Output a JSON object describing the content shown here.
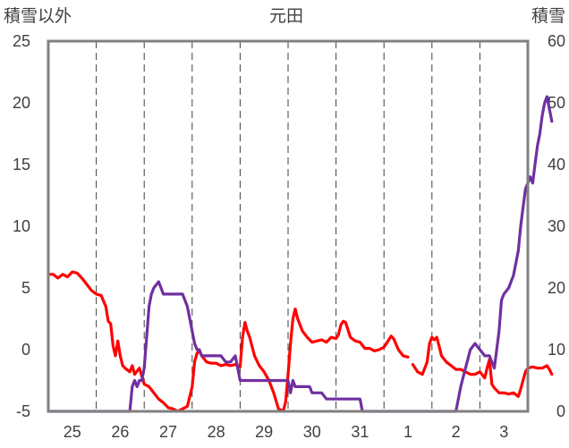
{
  "chart_data": {
    "type": "line",
    "title": "元田",
    "left_axis_label": "積雪以外",
    "right_axis_label": "積雪",
    "x_tick_labels": [
      "25",
      "26",
      "27",
      "28",
      "29",
      "30",
      "31",
      "1",
      "2",
      "3"
    ],
    "x_range_days": [
      0,
      10
    ],
    "y_left": {
      "min": -5,
      "max": 25,
      "ticks": [
        "-5",
        "0",
        "5",
        "10",
        "15",
        "20",
        "25"
      ]
    },
    "y_right": {
      "min": 0,
      "max": 60,
      "ticks": [
        "0",
        "10",
        "20",
        "30",
        "40",
        "50",
        "60"
      ]
    },
    "grid": {
      "vertical": "dashed",
      "horizontal": "none"
    },
    "series": [
      {
        "axis": "left",
        "color": "#ff0000",
        "points": [
          [
            0.0,
            6.1
          ],
          [
            0.1,
            6.1
          ],
          [
            0.2,
            5.8
          ],
          [
            0.3,
            6.1
          ],
          [
            0.4,
            5.9
          ],
          [
            0.5,
            6.3
          ],
          [
            0.6,
            6.2
          ],
          [
            0.7,
            5.8
          ],
          [
            0.8,
            5.3
          ],
          [
            0.9,
            4.8
          ],
          [
            1.0,
            4.5
          ],
          [
            1.1,
            4.4
          ],
          [
            1.2,
            3.5
          ],
          [
            1.25,
            2.3
          ],
          [
            1.3,
            2.1
          ],
          [
            1.35,
            0.3
          ],
          [
            1.4,
            -0.5
          ],
          [
            1.45,
            0.7
          ],
          [
            1.5,
            -0.5
          ],
          [
            1.55,
            -1.3
          ],
          [
            1.6,
            -1.5
          ],
          [
            1.7,
            -1.8
          ],
          [
            1.75,
            -1.3
          ],
          [
            1.8,
            -2.0
          ],
          [
            1.9,
            -1.5
          ],
          [
            2.0,
            -2.8
          ],
          [
            2.1,
            -3.0
          ],
          [
            2.2,
            -3.5
          ],
          [
            2.3,
            -4.0
          ],
          [
            2.4,
            -4.3
          ],
          [
            2.5,
            -4.7
          ],
          [
            2.6,
            -4.8
          ],
          [
            2.7,
            -5.0
          ],
          [
            2.8,
            -4.8
          ],
          [
            2.9,
            -4.6
          ],
          [
            3.0,
            -3.0
          ],
          [
            3.05,
            -1.0
          ],
          [
            3.1,
            -0.3
          ],
          [
            3.15,
            -0.1
          ],
          [
            3.2,
            -0.5
          ],
          [
            3.3,
            -1.0
          ],
          [
            3.4,
            -1.1
          ],
          [
            3.5,
            -1.1
          ],
          [
            3.6,
            -1.3
          ],
          [
            3.7,
            -1.2
          ],
          [
            3.8,
            -1.3
          ],
          [
            3.9,
            -1.2
          ],
          [
            4.0,
            -1.4
          ],
          [
            4.05,
            1.0
          ],
          [
            4.1,
            2.2
          ],
          [
            4.15,
            1.5
          ],
          [
            4.2,
            1.0
          ],
          [
            4.3,
            -0.5
          ],
          [
            4.4,
            -1.3
          ],
          [
            4.5,
            -1.8
          ],
          [
            4.6,
            -2.5
          ],
          [
            4.7,
            -3.5
          ],
          [
            4.8,
            -4.8
          ],
          [
            4.9,
            -5.0
          ],
          [
            4.95,
            -4.2
          ],
          [
            5.0,
            -2.0
          ],
          [
            5.05,
            0.5
          ],
          [
            5.1,
            2.5
          ],
          [
            5.15,
            3.3
          ],
          [
            5.2,
            2.5
          ],
          [
            5.3,
            1.5
          ],
          [
            5.4,
            1.0
          ],
          [
            5.5,
            0.6
          ],
          [
            5.6,
            0.7
          ],
          [
            5.7,
            0.8
          ],
          [
            5.8,
            0.6
          ],
          [
            5.9,
            1.0
          ],
          [
            6.0,
            0.9
          ],
          [
            6.05,
            1.2
          ],
          [
            6.1,
            2.0
          ],
          [
            6.15,
            2.3
          ],
          [
            6.2,
            2.2
          ],
          [
            6.3,
            1.0
          ],
          [
            6.4,
            0.7
          ],
          [
            6.5,
            0.6
          ],
          [
            6.6,
            0.1
          ],
          [
            6.7,
            0.1
          ],
          [
            6.8,
            -0.1
          ],
          [
            6.9,
            0.0
          ],
          [
            7.0,
            0.2
          ],
          [
            7.1,
            0.8
          ],
          [
            7.15,
            1.1
          ],
          [
            7.2,
            0.9
          ],
          [
            7.3,
            0.0
          ],
          [
            7.4,
            -0.5
          ],
          [
            7.5,
            -0.6
          ],
          [
            7.55,
            null
          ],
          [
            7.6,
            -1.2
          ],
          [
            7.7,
            -1.8
          ],
          [
            7.8,
            -2.0
          ],
          [
            7.85,
            -1.5
          ],
          [
            7.9,
            -1.0
          ],
          [
            7.95,
            0.5
          ],
          [
            8.0,
            1.0
          ],
          [
            8.05,
            0.8
          ],
          [
            8.1,
            1.0
          ],
          [
            8.15,
            0.3
          ],
          [
            8.2,
            -0.5
          ],
          [
            8.3,
            -1.0
          ],
          [
            8.4,
            -1.3
          ],
          [
            8.5,
            -1.6
          ],
          [
            8.6,
            -1.6
          ],
          [
            8.7,
            -1.8
          ],
          [
            8.8,
            -2.0
          ],
          [
            8.9,
            -2.0
          ],
          [
            9.0,
            -1.8
          ],
          [
            9.1,
            -2.3
          ],
          [
            9.15,
            -1.5
          ],
          [
            9.2,
            -0.8
          ],
          [
            9.25,
            -2.8
          ],
          [
            9.3,
            -3.1
          ],
          [
            9.4,
            -3.5
          ],
          [
            9.5,
            -3.5
          ],
          [
            9.6,
            -3.6
          ],
          [
            9.7,
            -3.5
          ],
          [
            9.8,
            -3.8
          ],
          [
            9.85,
            -3.2
          ],
          [
            9.9,
            -2.5
          ],
          [
            9.95,
            -1.8
          ],
          [
            10.0,
            -1.5
          ],
          [
            10.1,
            -1.4
          ],
          [
            10.2,
            -1.5
          ],
          [
            10.3,
            -1.5
          ],
          [
            10.4,
            -1.3
          ],
          [
            10.45,
            -1.6
          ],
          [
            10.5,
            -2.0
          ]
        ]
      },
      {
        "axis": "right",
        "color": "#7030a0",
        "points": [
          [
            0.0,
            0
          ],
          [
            1.7,
            0
          ],
          [
            1.75,
            4
          ],
          [
            1.8,
            5
          ],
          [
            1.85,
            4
          ],
          [
            1.9,
            5
          ],
          [
            1.95,
            5
          ],
          [
            2.0,
            7
          ],
          [
            2.05,
            12
          ],
          [
            2.1,
            17
          ],
          [
            2.15,
            19
          ],
          [
            2.2,
            20
          ],
          [
            2.3,
            21
          ],
          [
            2.35,
            20
          ],
          [
            2.4,
            19
          ],
          [
            2.5,
            19
          ],
          [
            2.6,
            19
          ],
          [
            2.7,
            19
          ],
          [
            2.8,
            19
          ],
          [
            2.9,
            17
          ],
          [
            3.0,
            13
          ],
          [
            3.05,
            11
          ],
          [
            3.1,
            10
          ],
          [
            3.15,
            10
          ],
          [
            3.2,
            9
          ],
          [
            3.3,
            9
          ],
          [
            3.5,
            9
          ],
          [
            3.6,
            9
          ],
          [
            3.7,
            8
          ],
          [
            3.8,
            8
          ],
          [
            3.9,
            9
          ],
          [
            4.0,
            5
          ],
          [
            4.5,
            5
          ],
          [
            4.8,
            5
          ],
          [
            5.0,
            5
          ],
          [
            5.05,
            3
          ],
          [
            5.1,
            5
          ],
          [
            5.15,
            4
          ],
          [
            5.3,
            4
          ],
          [
            5.45,
            4
          ],
          [
            5.5,
            3
          ],
          [
            5.6,
            3
          ],
          [
            5.7,
            3
          ],
          [
            5.8,
            2
          ],
          [
            6.0,
            2
          ],
          [
            6.5,
            2
          ],
          [
            6.55,
            0
          ],
          [
            7.5,
            0
          ],
          [
            8.0,
            0
          ],
          [
            8.5,
            0
          ],
          [
            8.6,
            4
          ],
          [
            8.7,
            7
          ],
          [
            8.8,
            10
          ],
          [
            8.9,
            11
          ],
          [
            9.0,
            10
          ],
          [
            9.1,
            9
          ],
          [
            9.2,
            9
          ],
          [
            9.3,
            7
          ],
          [
            9.35,
            10
          ],
          [
            9.4,
            13
          ],
          [
            9.45,
            18
          ],
          [
            9.5,
            19
          ],
          [
            9.6,
            20
          ],
          [
            9.65,
            21
          ],
          [
            9.7,
            22
          ],
          [
            9.75,
            24
          ],
          [
            9.8,
            26
          ],
          [
            9.85,
            30
          ],
          [
            9.9,
            33
          ],
          [
            9.95,
            36
          ],
          [
            10.0,
            37
          ],
          [
            10.05,
            38
          ],
          [
            10.1,
            37
          ],
          [
            10.15,
            40
          ],
          [
            10.2,
            43
          ],
          [
            10.25,
            45
          ],
          [
            10.3,
            48
          ],
          [
            10.35,
            50
          ],
          [
            10.4,
            51
          ],
          [
            10.45,
            49
          ],
          [
            10.5,
            47
          ]
        ]
      }
    ]
  }
}
